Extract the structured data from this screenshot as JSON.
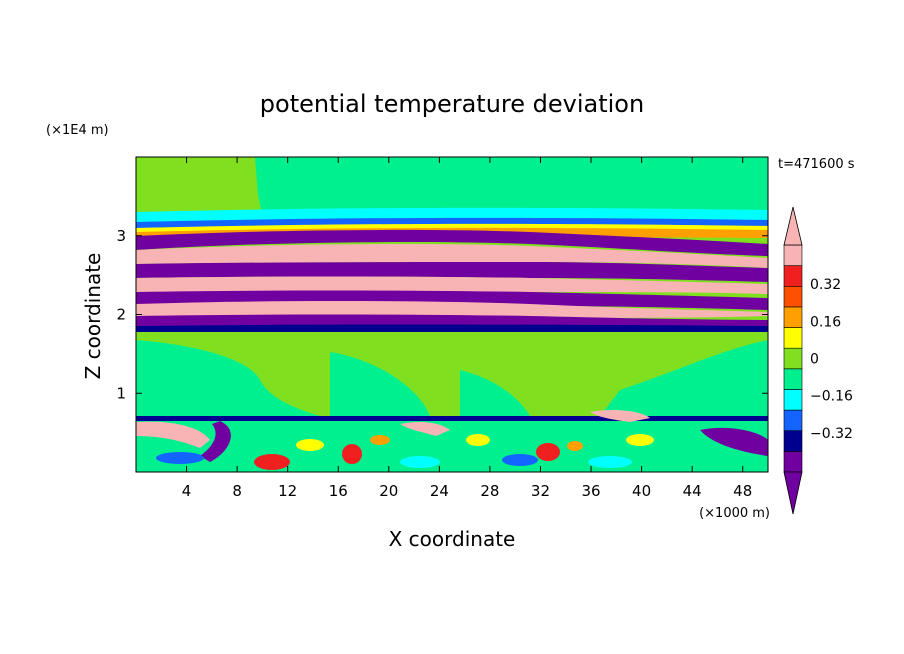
{
  "chart_data": {
    "type": "heatmap",
    "title": "potential temperature deviation",
    "xlabel": "X coordinate",
    "ylabel": "Z coordinate",
    "x_unit": "(×1000 m)",
    "y_unit": "(×1E4 m)",
    "time_label": "t=471600 s",
    "xlim": [
      0,
      50
    ],
    "ylim": [
      0,
      4
    ],
    "x_ticks": [
      4,
      8,
      12,
      16,
      20,
      24,
      28,
      32,
      36,
      40,
      44,
      48
    ],
    "y_ticks": [
      1,
      2,
      3
    ],
    "colorbar": {
      "levels": [
        -0.48,
        -0.4,
        -0.32,
        -0.24,
        -0.16,
        -0.08,
        0,
        0.08,
        0.16,
        0.24,
        0.32,
        0.4,
        0.48
      ],
      "colors": [
        "#7000a0",
        "#000090",
        "#1464ff",
        "#00ffff",
        "#00f090",
        "#80e020",
        "#ffff00",
        "#ffa000",
        "#ff5000",
        "#f02020",
        "#f8b4b4"
      ],
      "under_color": "#7000a0",
      "over_color": "#f8b4b4",
      "tick_values": [
        0.32,
        0.16,
        0,
        -0.16,
        -0.32
      ],
      "tick_labels": [
        "0.32",
        "0.16",
        "0",
        "−0.16",
        "−0.32"
      ]
    },
    "regions": {
      "free_atmosphere": {
        "z": [
          3.3,
          4.0
        ],
        "value_range": [
          -0.08,
          0.08
        ]
      },
      "layered_band": {
        "z": [
          1.8,
          3.1
        ],
        "value_range": [
          -0.48,
          0.48
        ],
        "pattern": "alternating tilted positive/negative layers"
      },
      "quiescent_layer": {
        "z": [
          0.7,
          1.8
        ],
        "value_range": [
          -0.08,
          0.08
        ]
      },
      "boundary_layer": {
        "z": [
          0.0,
          0.7
        ],
        "value_range": [
          -0.48,
          0.4
        ],
        "pattern": "turbulent eddies"
      }
    }
  }
}
